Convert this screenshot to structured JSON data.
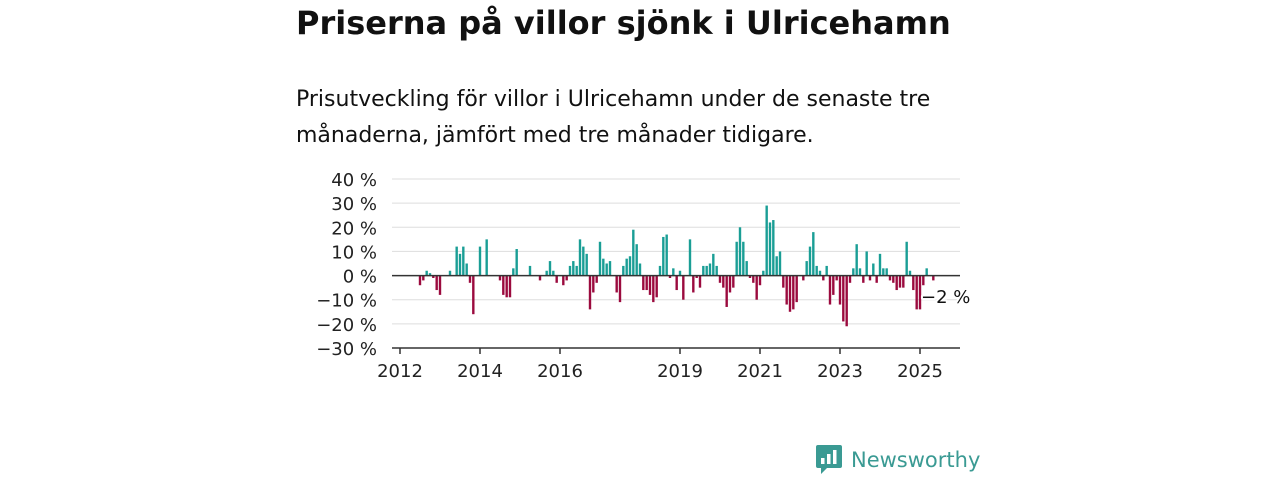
{
  "title": "Priserna på villor sjönk i Ulricehamn",
  "subtitle": "Prisutveckling för villor i Ulricehamn under de senaste tre månaderna, jämfört med tre månader tidigare.",
  "brand": {
    "name": "Newsworthy",
    "icon": "newsworthy-logo-icon",
    "color": "#3a9a93"
  },
  "chart_data": {
    "type": "bar",
    "ylim": [
      -30,
      40
    ],
    "y_ticks": [
      40,
      30,
      20,
      10,
      0,
      -10,
      -20,
      -30
    ],
    "y_tick_labels": [
      "40 %",
      "30 %",
      "20 %",
      "10 %",
      "0 %",
      "−10 %",
      "−20 %",
      "−30 %"
    ],
    "x_ticks": [
      2012,
      2014,
      2016,
      2019,
      2021,
      2023,
      2025
    ],
    "x_tick_labels": [
      "2012",
      "2014",
      "2016",
      "2019",
      "2021",
      "2023",
      "2025"
    ],
    "x_start": 2012.0,
    "x_end": 2025.9,
    "colors": {
      "positive": "#1a9e95",
      "negative": "#9b0a3e",
      "grid": "#dddddd",
      "axis": "#333333"
    },
    "annotation": {
      "label": "−2 %",
      "value": -2
    },
    "bars": [
      {
        "x": 2012.5,
        "value": -4
      },
      {
        "x": 2012.583,
        "value": -2
      },
      {
        "x": 2012.667,
        "value": 2
      },
      {
        "x": 2012.75,
        "value": 1
      },
      {
        "x": 2012.833,
        "value": -1
      },
      {
        "x": 2012.917,
        "value": -6
      },
      {
        "x": 2013.0,
        "value": -8
      },
      {
        "x": 2013.25,
        "value": 2
      },
      {
        "x": 2013.417,
        "value": 12
      },
      {
        "x": 2013.5,
        "value": 9
      },
      {
        "x": 2013.583,
        "value": 12
      },
      {
        "x": 2013.667,
        "value": 5
      },
      {
        "x": 2013.75,
        "value": -3
      },
      {
        "x": 2013.833,
        "value": -16
      },
      {
        "x": 2014.0,
        "value": 12
      },
      {
        "x": 2014.167,
        "value": 15
      },
      {
        "x": 2014.5,
        "value": -2
      },
      {
        "x": 2014.583,
        "value": -8
      },
      {
        "x": 2014.667,
        "value": -9
      },
      {
        "x": 2014.75,
        "value": -9
      },
      {
        "x": 2014.833,
        "value": 3
      },
      {
        "x": 2014.917,
        "value": 11
      },
      {
        "x": 2015.25,
        "value": 4
      },
      {
        "x": 2015.5,
        "value": -2
      },
      {
        "x": 2015.667,
        "value": 2
      },
      {
        "x": 2015.75,
        "value": 6
      },
      {
        "x": 2015.833,
        "value": 2
      },
      {
        "x": 2015.917,
        "value": -3
      },
      {
        "x": 2016.083,
        "value": -4
      },
      {
        "x": 2016.167,
        "value": -2
      },
      {
        "x": 2016.25,
        "value": 4
      },
      {
        "x": 2016.333,
        "value": 6
      },
      {
        "x": 2016.417,
        "value": 4
      },
      {
        "x": 2016.5,
        "value": 15
      },
      {
        "x": 2016.583,
        "value": 12
      },
      {
        "x": 2016.667,
        "value": 9
      },
      {
        "x": 2016.75,
        "value": -14
      },
      {
        "x": 2016.833,
        "value": -7
      },
      {
        "x": 2016.917,
        "value": -3
      },
      {
        "x": 2017.0,
        "value": 14
      },
      {
        "x": 2017.083,
        "value": 7
      },
      {
        "x": 2017.167,
        "value": 5
      },
      {
        "x": 2017.25,
        "value": 6
      },
      {
        "x": 2017.417,
        "value": -7
      },
      {
        "x": 2017.5,
        "value": -11
      },
      {
        "x": 2017.583,
        "value": 4
      },
      {
        "x": 2017.667,
        "value": 7
      },
      {
        "x": 2017.75,
        "value": 8
      },
      {
        "x": 2017.833,
        "value": 19
      },
      {
        "x": 2017.917,
        "value": 13
      },
      {
        "x": 2018.0,
        "value": 5
      },
      {
        "x": 2018.083,
        "value": -6
      },
      {
        "x": 2018.167,
        "value": -6
      },
      {
        "x": 2018.25,
        "value": -8
      },
      {
        "x": 2018.333,
        "value": -11
      },
      {
        "x": 2018.417,
        "value": -9
      },
      {
        "x": 2018.5,
        "value": 4
      },
      {
        "x": 2018.583,
        "value": 16
      },
      {
        "x": 2018.667,
        "value": 17
      },
      {
        "x": 2018.75,
        "value": -1
      },
      {
        "x": 2018.833,
        "value": 3
      },
      {
        "x": 2018.917,
        "value": -6
      },
      {
        "x": 2019.0,
        "value": 2
      },
      {
        "x": 2019.083,
        "value": -10
      },
      {
        "x": 2019.25,
        "value": 15
      },
      {
        "x": 2019.333,
        "value": -7
      },
      {
        "x": 2019.417,
        "value": -1
      },
      {
        "x": 2019.5,
        "value": -5
      },
      {
        "x": 2019.583,
        "value": 4
      },
      {
        "x": 2019.667,
        "value": 4
      },
      {
        "x": 2019.75,
        "value": 5
      },
      {
        "x": 2019.833,
        "value": 9
      },
      {
        "x": 2019.917,
        "value": 4
      },
      {
        "x": 2020.0,
        "value": -3
      },
      {
        "x": 2020.083,
        "value": -5
      },
      {
        "x": 2020.167,
        "value": -13
      },
      {
        "x": 2020.25,
        "value": -7
      },
      {
        "x": 2020.333,
        "value": -5
      },
      {
        "x": 2020.417,
        "value": 14
      },
      {
        "x": 2020.5,
        "value": 20
      },
      {
        "x": 2020.583,
        "value": 14
      },
      {
        "x": 2020.667,
        "value": 6
      },
      {
        "x": 2020.75,
        "value": -1
      },
      {
        "x": 2020.833,
        "value": -3
      },
      {
        "x": 2020.917,
        "value": -10
      },
      {
        "x": 2021.0,
        "value": -4
      },
      {
        "x": 2021.083,
        "value": 2
      },
      {
        "x": 2021.167,
        "value": 29
      },
      {
        "x": 2021.25,
        "value": 22
      },
      {
        "x": 2021.333,
        "value": 23
      },
      {
        "x": 2021.417,
        "value": 8
      },
      {
        "x": 2021.5,
        "value": 10
      },
      {
        "x": 2021.583,
        "value": -5
      },
      {
        "x": 2021.667,
        "value": -12
      },
      {
        "x": 2021.75,
        "value": -15
      },
      {
        "x": 2021.833,
        "value": -14
      },
      {
        "x": 2021.917,
        "value": -11
      },
      {
        "x": 2022.083,
        "value": -2
      },
      {
        "x": 2022.167,
        "value": 6
      },
      {
        "x": 2022.25,
        "value": 12
      },
      {
        "x": 2022.333,
        "value": 18
      },
      {
        "x": 2022.417,
        "value": 4
      },
      {
        "x": 2022.5,
        "value": 2
      },
      {
        "x": 2022.583,
        "value": -2
      },
      {
        "x": 2022.667,
        "value": 4
      },
      {
        "x": 2022.75,
        "value": -12
      },
      {
        "x": 2022.833,
        "value": -8
      },
      {
        "x": 2022.917,
        "value": -2
      },
      {
        "x": 2023.0,
        "value": -12
      },
      {
        "x": 2023.083,
        "value": -19
      },
      {
        "x": 2023.167,
        "value": -21
      },
      {
        "x": 2023.25,
        "value": -3
      },
      {
        "x": 2023.333,
        "value": 3
      },
      {
        "x": 2023.417,
        "value": 13
      },
      {
        "x": 2023.5,
        "value": 3
      },
      {
        "x": 2023.583,
        "value": -3
      },
      {
        "x": 2023.667,
        "value": 10
      },
      {
        "x": 2023.75,
        "value": -2
      },
      {
        "x": 2023.833,
        "value": 5
      },
      {
        "x": 2023.917,
        "value": -3
      },
      {
        "x": 2024.0,
        "value": 9
      },
      {
        "x": 2024.083,
        "value": 3
      },
      {
        "x": 2024.167,
        "value": 3
      },
      {
        "x": 2024.25,
        "value": -2
      },
      {
        "x": 2024.333,
        "value": -3
      },
      {
        "x": 2024.417,
        "value": -6
      },
      {
        "x": 2024.5,
        "value": -5
      },
      {
        "x": 2024.583,
        "value": -5
      },
      {
        "x": 2024.667,
        "value": 14
      },
      {
        "x": 2024.75,
        "value": 2
      },
      {
        "x": 2024.833,
        "value": -6
      },
      {
        "x": 2024.917,
        "value": -14
      },
      {
        "x": 2025.0,
        "value": -14
      },
      {
        "x": 2025.083,
        "value": -4
      },
      {
        "x": 2025.167,
        "value": 3
      },
      {
        "x": 2025.333,
        "value": -2
      }
    ]
  }
}
